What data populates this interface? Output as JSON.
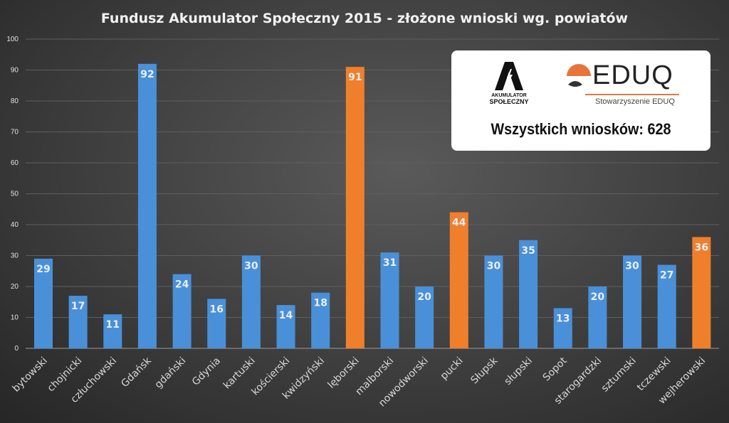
{
  "chart_data": {
    "type": "bar",
    "title": "Fundusz Akumulator Społeczny 2015 - złożone wnioski wg. powiatów",
    "categories": [
      "bytowski",
      "chojnicki",
      "człuchowski",
      "Gdańsk",
      "gdański",
      "Gdynia",
      "kartuski",
      "kościerski",
      "kwidzyński",
      "lęborski",
      "malborski",
      "nowodworski",
      "pucki",
      "Słupsk",
      "słupski",
      "Sopot",
      "starogardzki",
      "sztumski",
      "tczewski",
      "wejherowski"
    ],
    "values": [
      29,
      17,
      11,
      92,
      24,
      16,
      30,
      14,
      18,
      91,
      31,
      20,
      44,
      30,
      35,
      13,
      20,
      30,
      27,
      36
    ],
    "highlighted": [
      "lęborski",
      "pucki",
      "wejherowski"
    ],
    "ylim": [
      0,
      100
    ],
    "yticks": [
      0,
      10,
      20,
      30,
      40,
      50,
      60,
      70,
      80,
      90,
      100
    ],
    "grid": true,
    "data_labels": true,
    "colors": {
      "default": "#4a90d9",
      "highlight": "#f07f2c"
    }
  },
  "infobox": {
    "logo1_line1": "AKUMULATOR",
    "logo1_line2": "SPOŁECZNY",
    "logo2_word": "EDUQ",
    "logo2_sub": "Stowarzyszenie EDUQ",
    "total_text": "Wszystkich wniosków: 628"
  }
}
